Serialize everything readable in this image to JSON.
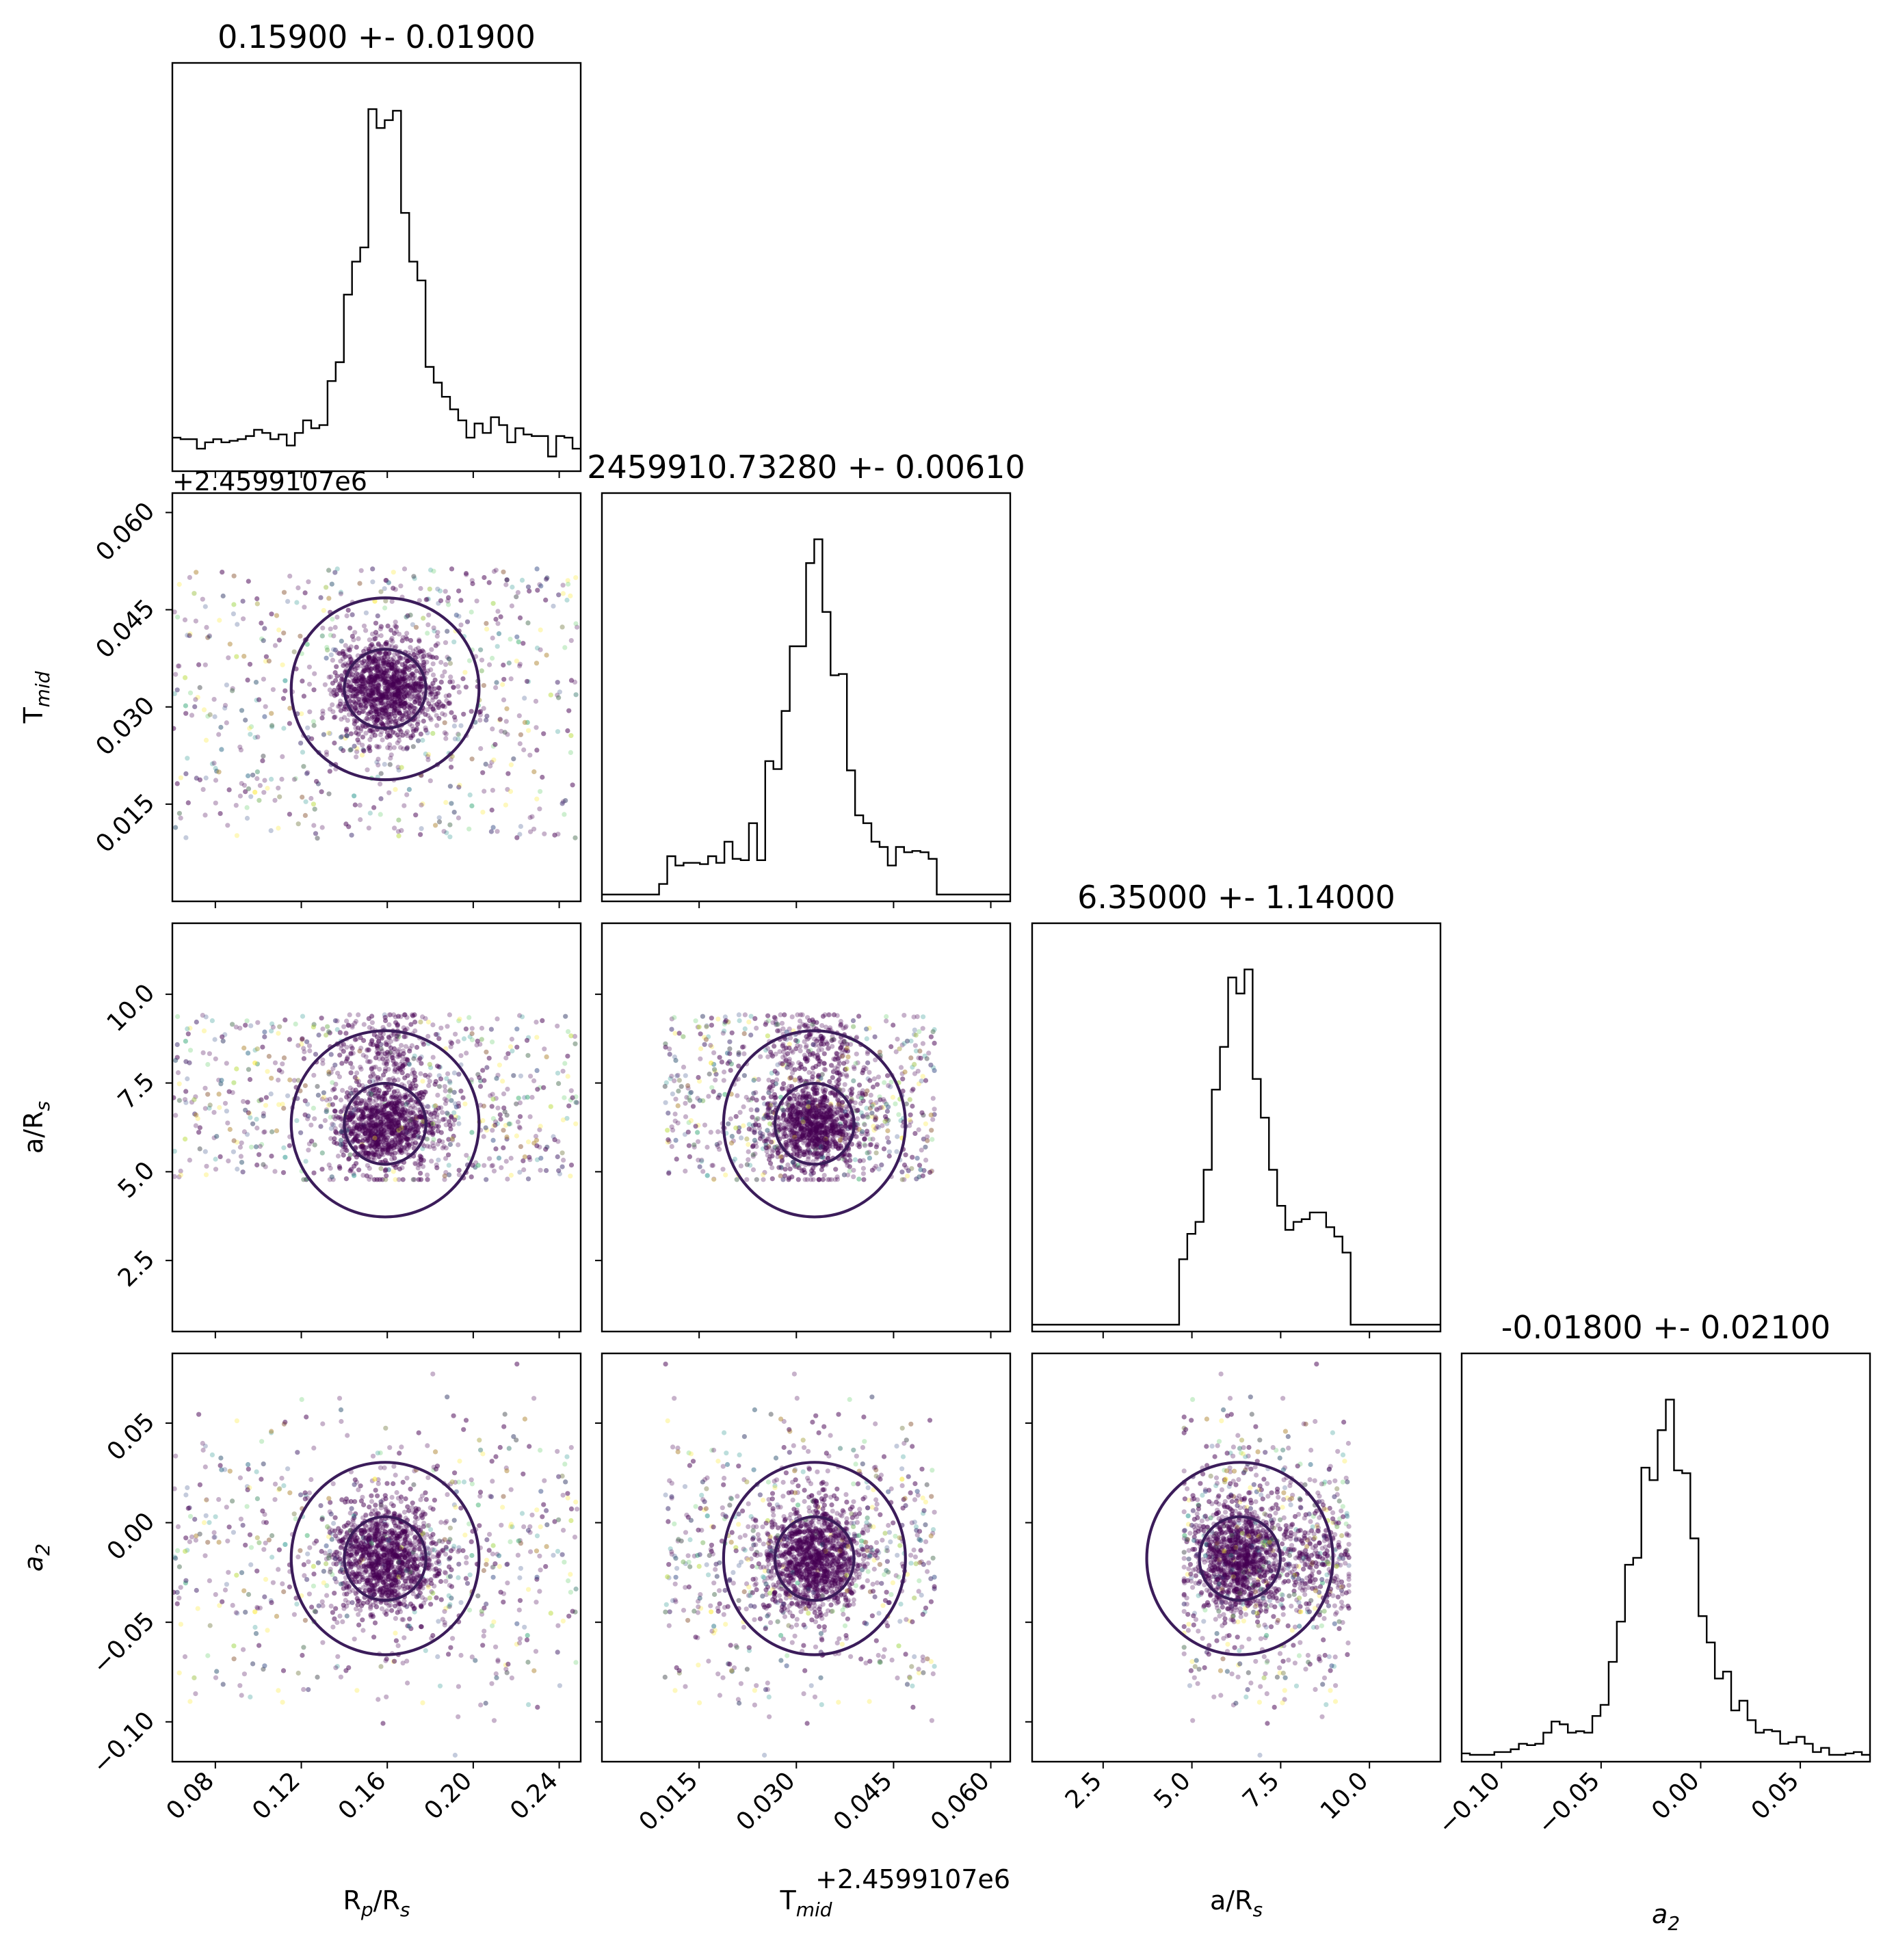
{
  "chart_data": {
    "type": "corner",
    "parameters": [
      {
        "key": "rp",
        "label": "R_p/R_s",
        "range": [
          0.06,
          0.25
        ],
        "ticks": [
          0.08,
          0.12,
          0.16,
          0.2,
          0.24
        ],
        "tick_labels": [
          "0.08",
          "0.12",
          "0.16",
          "0.20",
          "0.24"
        ],
        "title": "0.15900 +- 0.01900",
        "mean": 0.159,
        "sigma": 0.019,
        "offset": ""
      },
      {
        "key": "tmid",
        "label": "T_mid",
        "range": [
          0.0,
          0.063
        ],
        "ticks": [
          0.015,
          0.03,
          0.045,
          0.06
        ],
        "tick_labels": [
          "0.015",
          "0.030",
          "0.045",
          "0.060"
        ],
        "title": "2459910.73280 +- 0.00610",
        "mean": 0.0328,
        "sigma": 0.0061,
        "offset": "+2.4599107e6"
      },
      {
        "key": "ars",
        "label": "a/R_s",
        "range": [
          0.5,
          12.0
        ],
        "ticks": [
          2.5,
          5.0,
          7.5,
          10.0
        ],
        "tick_labels": [
          "2.5",
          "5.0",
          "7.5",
          "10.0"
        ],
        "title": "6.35000 +- 1.14000",
        "mean": 6.35,
        "sigma": 1.14,
        "offset": ""
      },
      {
        "key": "a2",
        "label": "a_2",
        "range": [
          -0.12,
          0.085
        ],
        "ticks": [
          -0.1,
          -0.05,
          0.0,
          0.05
        ],
        "tick_labels": [
          "−0.10",
          "−0.05",
          "0.00",
          "0.05"
        ],
        "title": "-0.01800 +- 0.02100",
        "mean": -0.018,
        "sigma": 0.021,
        "offset": ""
      }
    ],
    "axis_labels": {
      "rp": {
        "main": "R",
        "sub": "p",
        "mid": "/R",
        "sub2": "s"
      },
      "tmid": {
        "main": "T",
        "sub": "mid",
        "mid": "",
        "sub2": ""
      },
      "ars": {
        "main": "a/R",
        "sub": "s",
        "mid": "",
        "sub2": ""
      },
      "a2": {
        "main": "a",
        "sub": "2",
        "mid": "",
        "sub2": ""
      }
    },
    "histogram_color": "#000000",
    "contour_color": "#3b1c5a",
    "scatter_colormap": "viridis",
    "grid": false
  }
}
